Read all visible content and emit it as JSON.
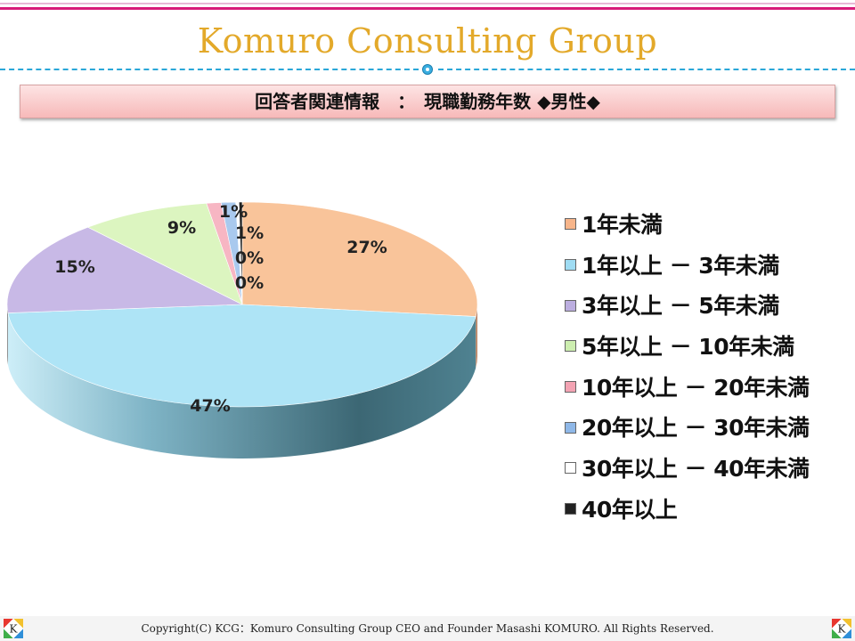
{
  "header": {
    "brand": "Komuro Consulting Group",
    "banner_title": "回答者関連情報　：　現職勤務年数 ◆男性◆"
  },
  "chart_data": {
    "type": "pie",
    "categories": [
      "1年未満",
      "1年以上 － 3年未満",
      "3年以上 － 5年未満",
      "5年以上 － 10年未満",
      "10年以上 － 20年未満",
      "20年以上 － 30年未満",
      "30年以上 － 40年未満",
      "40年以上"
    ],
    "values": [
      27,
      47,
      15,
      9,
      1,
      1,
      0,
      0
    ],
    "data_labels": [
      "27%",
      "47%",
      "15%",
      "9%",
      "1%",
      "1%",
      "0%",
      "0%"
    ],
    "colors": [
      "#f9c49a",
      "#aee4f6",
      "#c8b9e6",
      "#dcf5c0",
      "#f7b6c3",
      "#a9c9ee",
      "#ffffff",
      "#222222"
    ],
    "legend_placement": "right",
    "style": "3d"
  },
  "legend": {
    "items": [
      {
        "label": "1年未満",
        "color": "#f7b58a"
      },
      {
        "label": "1年以上 － 3年未満",
        "color": "#9fdcf3"
      },
      {
        "label": "3年以上 － 5年未満",
        "color": "#bcaee0"
      },
      {
        "label": "5年以上 － 10年未満",
        "color": "#cdeeb0"
      },
      {
        "label": "10年以上 － 20年未満",
        "color": "#f3a3b3"
      },
      {
        "label": "20年以上 － 30年未満",
        "color": "#8fb8e8"
      },
      {
        "label": "30年以上 － 40年未満",
        "color": "#ffffff"
      },
      {
        "label": "40年以上",
        "color": "#222222"
      }
    ]
  },
  "footer": {
    "copyright": "Copyright(C) KCG：Komuro Consulting Group CEO and Founder Masashi KOMURO. All Rights Reserved."
  },
  "icons": [
    "k-logo-icon"
  ]
}
